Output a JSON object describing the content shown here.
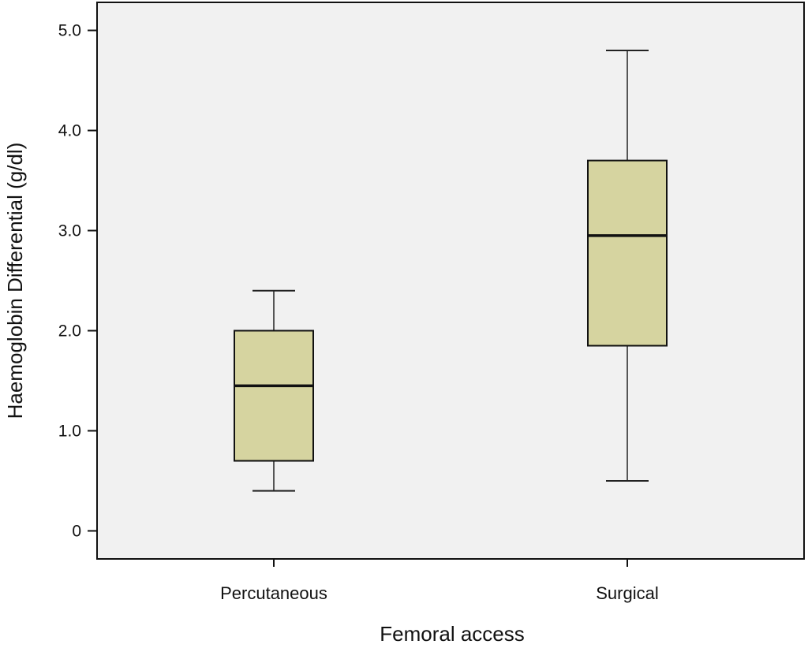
{
  "chart_data": {
    "type": "box",
    "title": "",
    "xlabel": "Femoral access",
    "ylabel": "Haemoglobin Differential (g/dl)",
    "ylim": [
      -0.28,
      5.28
    ],
    "yticks": [
      0,
      1,
      2,
      3,
      4,
      5
    ],
    "ytick_labels": [
      "0",
      "1.0",
      "2.0",
      "3.0",
      "4.0",
      "5.0"
    ],
    "grid": false,
    "legend": "none",
    "box_color": "#d6d4a0",
    "plot_bg": "#f1f1f1",
    "categories": [
      "Percutaneous",
      "Surgical"
    ],
    "boxes": [
      {
        "category": "Percutaneous",
        "min": 0.4,
        "q1": 0.7,
        "median": 1.45,
        "q3": 2.0,
        "max": 2.4
      },
      {
        "category": "Surgical",
        "min": 0.5,
        "q1": 1.85,
        "median": 2.95,
        "q3": 3.7,
        "max": 4.8
      }
    ]
  }
}
